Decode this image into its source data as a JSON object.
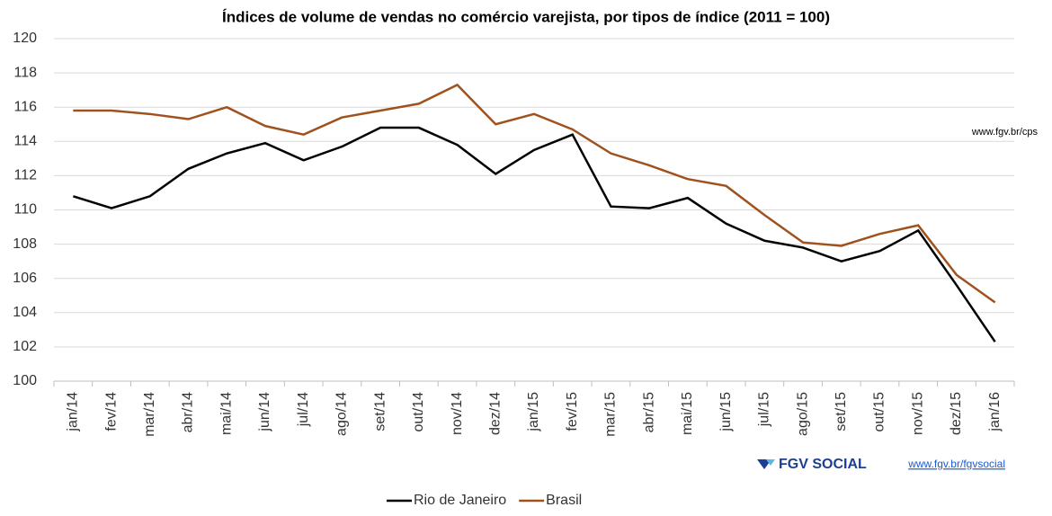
{
  "chart_data": {
    "type": "line",
    "title": "Índices de volume de vendas no comércio varejista, por tipos de índice (2011 = 100)",
    "categories": [
      "jan/14",
      "fev/14",
      "mar/14",
      "abr/14",
      "mai/14",
      "jun/14",
      "jul/14",
      "ago/14",
      "set/14",
      "out/14",
      "nov/14",
      "dez/14",
      "jan/15",
      "fev/15",
      "mar/15",
      "abr/15",
      "mai/15",
      "jun/15",
      "jul/15",
      "ago/15",
      "set/15",
      "out/15",
      "nov/15",
      "dez/15",
      "jan/16"
    ],
    "series": [
      {
        "name": "Rio de Janeiro",
        "color": "#000000",
        "values": [
          110.8,
          110.1,
          110.8,
          112.4,
          113.3,
          113.9,
          112.9,
          113.7,
          114.8,
          114.8,
          113.8,
          112.1,
          113.5,
          114.4,
          110.2,
          110.1,
          110.7,
          109.2,
          108.2,
          107.8,
          107.0,
          107.6,
          108.8,
          105.6,
          102.3
        ]
      },
      {
        "name": "Brasil",
        "color": "#a0521e",
        "values": [
          115.8,
          115.8,
          115.6,
          115.3,
          116.0,
          114.9,
          114.4,
          115.4,
          115.8,
          116.2,
          117.3,
          115.0,
          115.6,
          114.7,
          113.3,
          112.6,
          111.8,
          111.4,
          109.7,
          108.1,
          107.9,
          108.6,
          109.1,
          106.2,
          104.6
        ]
      }
    ],
    "ylim": [
      100,
      120
    ],
    "yticks": [
      100,
      102,
      104,
      106,
      108,
      110,
      112,
      114,
      116,
      118,
      120
    ],
    "grid": true,
    "legend": "bottom",
    "annotations": {
      "source_url": "www.fgv.br/cps",
      "logo_text": "FGV SOCIAL",
      "logo_url": "www.fgv.br/fgvsocial"
    }
  }
}
